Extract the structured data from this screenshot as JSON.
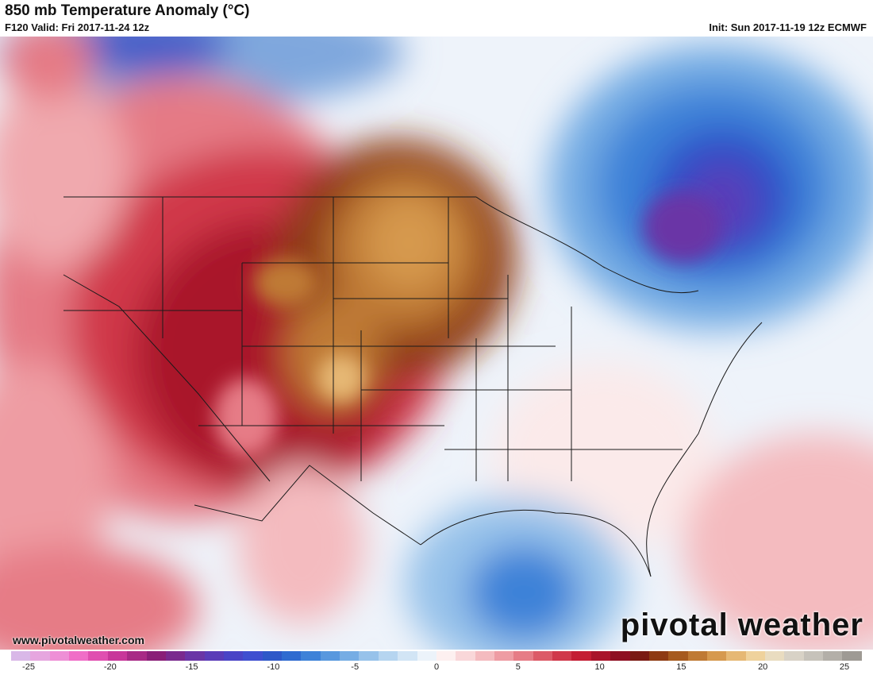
{
  "header": {
    "title": "850 mb Temperature Anomaly (°C)",
    "subtitle": "F120 Valid: Fri 2017-11-24 12z",
    "init": "Init: Sun 2017-11-19 12z ECMWF"
  },
  "footer": {
    "site": "www.pivotalweather.com",
    "brand": "pivotal weather"
  },
  "colorbar": {
    "ticks": [
      -25,
      -20,
      -15,
      -10,
      -5,
      0,
      5,
      10,
      15,
      20,
      25
    ],
    "tick_labels": [
      "-25",
      "-20",
      "-15",
      "-10",
      "-5",
      "0",
      "5",
      "10",
      "15",
      "20",
      "25"
    ],
    "colors": [
      "#d9b8e8",
      "#e6a6df",
      "#ee8fd6",
      "#f06ec7",
      "#e04fb0",
      "#c8379a",
      "#a82a86",
      "#8a1f78",
      "#7a2a8e",
      "#6a35a6",
      "#5a3cb8",
      "#4a44c6",
      "#3f4fd0",
      "#2e58c8",
      "#2f6bd0",
      "#3e82d8",
      "#5898de",
      "#76ade4",
      "#97c2ea",
      "#b6d5f0",
      "#d2e5f5",
      "#ecf3fa",
      "#fdf0f0",
      "#f9d7d9",
      "#f4bbbf",
      "#ee9ca3",
      "#e67c86",
      "#dc5a67",
      "#d0384a",
      "#c41e33",
      "#a9142a",
      "#8e0f22",
      "#7a1a12",
      "#8e3a12",
      "#a65a1e",
      "#bf7a34",
      "#d6994e",
      "#e6b874",
      "#efd29c",
      "#e9dcc0",
      "#d8d2c6",
      "#c6c2ba",
      "#b3afa8",
      "#9e9a94"
    ],
    "range": [
      -25,
      25
    ],
    "unit": "°C"
  }
}
